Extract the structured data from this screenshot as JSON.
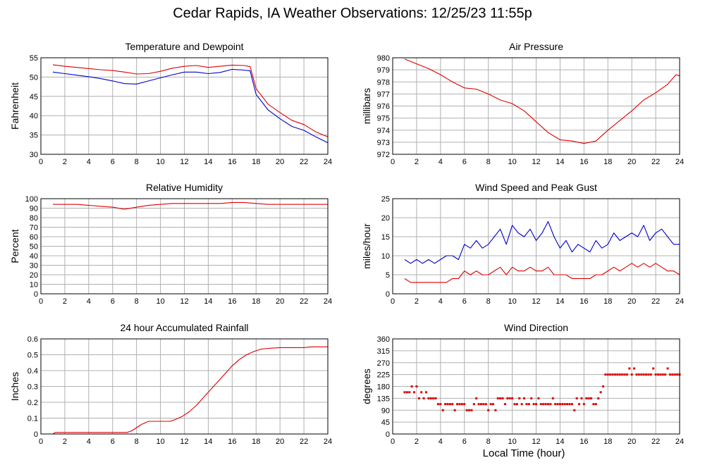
{
  "title": "Cedar Rapids, IA Weather Observations: 12/25/23 11:55p",
  "x_axis_title": "Local Time (hour)",
  "colors": {
    "primary": "#dd0000",
    "secondary": "#0000cc",
    "grid": "#b0b0b0"
  },
  "chart_data": [
    {
      "id": "temperature",
      "type": "line",
      "title": "Temperature and Dewpoint",
      "ylabel": "Fahrenheit",
      "xlim": [
        0,
        24
      ],
      "ylim": [
        30,
        55
      ],
      "xticks": [
        0,
        2,
        4,
        6,
        8,
        10,
        12,
        14,
        16,
        18,
        20,
        22,
        24
      ],
      "yticks": [
        30,
        35,
        40,
        45,
        50,
        55
      ],
      "grid": true,
      "series": [
        {
          "color": "#dd0000",
          "x": [
            1,
            2,
            3,
            4,
            5,
            6,
            7,
            8,
            9,
            10,
            11,
            12,
            13,
            14,
            15,
            16,
            17,
            17.5,
            18,
            19,
            20,
            21,
            22,
            23,
            24
          ],
          "y": [
            53.2,
            52.8,
            52.5,
            52.2,
            51.9,
            51.7,
            51.3,
            50.8,
            50.9,
            51.5,
            52.3,
            52.8,
            53.0,
            52.5,
            52.8,
            53.1,
            53.0,
            52.7,
            47.0,
            43.0,
            40.8,
            38.8,
            37.7,
            35.8,
            34.5
          ]
        },
        {
          "color": "#0000cc",
          "x": [
            1,
            2,
            3,
            4,
            5,
            6,
            7,
            8,
            9,
            10,
            11,
            12,
            13,
            14,
            15,
            16,
            17,
            17.5,
            18,
            19,
            20,
            21,
            22,
            23,
            24
          ],
          "y": [
            51.3,
            50.9,
            50.5,
            50.1,
            49.6,
            49.0,
            48.3,
            48.2,
            49.0,
            49.8,
            50.6,
            51.3,
            51.3,
            50.9,
            51.2,
            52.0,
            51.8,
            51.6,
            45.5,
            41.5,
            39.2,
            37.2,
            36.2,
            34.5,
            33.0
          ]
        }
      ]
    },
    {
      "id": "pressure",
      "type": "line",
      "title": "Air Pressure",
      "ylabel": "millibars",
      "xlim": [
        0,
        24
      ],
      "ylim": [
        972,
        980
      ],
      "xticks": [
        0,
        2,
        4,
        6,
        8,
        10,
        12,
        14,
        16,
        18,
        20,
        22,
        24
      ],
      "yticks": [
        972,
        973,
        974,
        975,
        976,
        977,
        978,
        979,
        980
      ],
      "grid": true,
      "series": [
        {
          "color": "#dd0000",
          "x": [
            1,
            2,
            3,
            4,
            5,
            6,
            7,
            8,
            9,
            10,
            11,
            12,
            13,
            14,
            15,
            16,
            17,
            18,
            19,
            20,
            21,
            22,
            23,
            23.7,
            24
          ],
          "y": [
            979.9,
            979.5,
            979.1,
            978.6,
            978.0,
            977.5,
            977.4,
            977.0,
            976.5,
            976.2,
            975.6,
            974.7,
            973.8,
            973.2,
            973.1,
            972.9,
            973.1,
            974.0,
            974.8,
            975.6,
            976.5,
            977.1,
            977.8,
            978.6,
            978.5
          ]
        }
      ]
    },
    {
      "id": "humidity",
      "type": "line",
      "title": "Relative Humidity",
      "ylabel": "Percent",
      "xlim": [
        0,
        24
      ],
      "ylim": [
        0,
        100
      ],
      "xticks": [
        0,
        2,
        4,
        6,
        8,
        10,
        12,
        14,
        16,
        18,
        20,
        22,
        24
      ],
      "yticks": [
        0,
        10,
        20,
        30,
        40,
        50,
        60,
        70,
        80,
        90,
        100
      ],
      "grid": true,
      "series": [
        {
          "color": "#dd0000",
          "x": [
            1,
            2,
            3,
            4,
            5,
            6,
            7,
            8,
            9,
            10,
            11,
            12,
            13,
            14,
            15,
            16,
            17,
            18,
            19,
            20,
            21,
            22,
            23,
            24
          ],
          "y": [
            94,
            94,
            94,
            93,
            92,
            91,
            89,
            91,
            93,
            94,
            95,
            95,
            95,
            95,
            95,
            96,
            96,
            95,
            94,
            94,
            94,
            94,
            94,
            94
          ]
        }
      ]
    },
    {
      "id": "wind-speed",
      "type": "line",
      "title": "Wind Speed and Peak Gust",
      "ylabel": "miles/hour",
      "xlim": [
        0,
        24
      ],
      "ylim": [
        0,
        25
      ],
      "xticks": [
        0,
        2,
        4,
        6,
        8,
        10,
        12,
        14,
        16,
        18,
        20,
        22,
        24
      ],
      "yticks": [
        0,
        5,
        10,
        15,
        20,
        25
      ],
      "grid": true,
      "series": [
        {
          "color": "#0000cc",
          "x": [
            1,
            1.5,
            2,
            2.5,
            3,
            3.5,
            4,
            4.5,
            5,
            5.5,
            6,
            6.5,
            7,
            7.5,
            8,
            8.5,
            9,
            9.5,
            10,
            10.5,
            11,
            11.5,
            12,
            12.5,
            13,
            13.5,
            14,
            14.5,
            15,
            15.5,
            16,
            16.5,
            17,
            17.5,
            18,
            18.5,
            19,
            19.5,
            20,
            20.5,
            21,
            21.5,
            22,
            22.5,
            23,
            23.5,
            24
          ],
          "y": [
            9,
            8,
            9,
            8,
            9,
            8,
            9,
            10,
            10,
            9,
            13,
            12,
            14,
            12,
            13,
            15,
            17,
            13,
            18,
            16,
            15,
            17,
            14,
            16,
            19,
            15,
            12,
            14,
            11,
            13,
            12,
            11,
            14,
            12,
            13,
            16,
            14,
            15,
            16,
            15,
            18,
            14,
            16,
            17,
            15,
            13,
            13
          ]
        },
        {
          "color": "#dd0000",
          "x": [
            1,
            1.5,
            2,
            2.5,
            3,
            3.5,
            4,
            4.5,
            5,
            5.5,
            6,
            6.5,
            7,
            7.5,
            8,
            8.5,
            9,
            9.5,
            10,
            10.5,
            11,
            11.5,
            12,
            12.5,
            13,
            13.5,
            14,
            14.5,
            15,
            15.5,
            16,
            16.5,
            17,
            17.5,
            18,
            18.5,
            19,
            19.5,
            20,
            20.5,
            21,
            21.5,
            22,
            22.5,
            23,
            23.5,
            24
          ],
          "y": [
            4,
            3,
            3,
            3,
            3,
            3,
            3,
            3,
            4,
            4,
            6,
            5,
            6,
            5,
            5,
            6,
            7,
            5,
            7,
            6,
            6,
            7,
            6,
            6,
            7,
            5,
            5,
            5,
            4,
            4,
            4,
            4,
            5,
            5,
            6,
            7,
            6,
            7,
            8,
            7,
            8,
            7,
            8,
            7,
            6,
            6,
            5
          ]
        }
      ]
    },
    {
      "id": "rainfall",
      "type": "line",
      "title": "24 hour Accumulated Rainfall",
      "ylabel": "Inches",
      "xlim": [
        0,
        24
      ],
      "ylim": [
        0,
        0.6
      ],
      "xticks": [
        0,
        2,
        4,
        6,
        8,
        10,
        12,
        14,
        16,
        18,
        20,
        22,
        24
      ],
      "yticks": [
        0,
        0.1,
        0.2,
        0.3,
        0.4,
        0.5,
        0.6
      ],
      "grid": true,
      "series": [
        {
          "color": "#dd0000",
          "x": [
            1,
            1.2,
            6.2,
            7.2,
            7.6,
            8.0,
            8.4,
            9.0,
            10.8,
            11.2,
            11.8,
            12.4,
            13.0,
            13.6,
            14.2,
            14.8,
            15.4,
            16.0,
            16.6,
            17.2,
            17.8,
            18.4,
            19.0,
            20.0,
            21.0,
            22.0,
            22.6,
            24.0
          ],
          "y": [
            0.0,
            0.01,
            0.01,
            0.01,
            0.02,
            0.04,
            0.06,
            0.08,
            0.08,
            0.09,
            0.11,
            0.14,
            0.18,
            0.23,
            0.28,
            0.33,
            0.38,
            0.43,
            0.47,
            0.5,
            0.52,
            0.535,
            0.54,
            0.545,
            0.545,
            0.545,
            0.55,
            0.55
          ]
        }
      ]
    },
    {
      "id": "wind-direction",
      "type": "scatter",
      "title": "Wind Direction",
      "ylabel": "degrees",
      "xlim": [
        0,
        24
      ],
      "ylim": [
        0,
        360
      ],
      "xticks": [
        0,
        2,
        4,
        6,
        8,
        10,
        12,
        14,
        16,
        18,
        20,
        22,
        24
      ],
      "yticks": [
        0,
        45,
        90,
        135,
        180,
        225,
        270,
        315,
        360
      ],
      "grid": true,
      "series": [
        {
          "color": "#dd0000",
          "x": [
            1.0,
            1.2,
            1.4,
            1.6,
            1.8,
            2.0,
            2.2,
            2.4,
            2.6,
            2.8,
            3.0,
            3.2,
            3.4,
            3.6,
            3.8,
            4.0,
            4.2,
            4.4,
            4.6,
            4.8,
            5.0,
            5.2,
            5.4,
            5.6,
            5.8,
            6.0,
            6.2,
            6.4,
            6.6,
            6.8,
            7.0,
            7.2,
            7.4,
            7.6,
            7.8,
            8.0,
            8.2,
            8.4,
            8.6,
            8.8,
            9.0,
            9.2,
            9.4,
            9.6,
            9.8,
            10.0,
            10.2,
            10.4,
            10.6,
            10.8,
            11.0,
            11.2,
            11.4,
            11.6,
            11.8,
            12.0,
            12.2,
            12.4,
            12.6,
            12.8,
            13.0,
            13.2,
            13.4,
            13.6,
            13.8,
            14.0,
            14.2,
            14.4,
            14.6,
            14.8,
            15.0,
            15.2,
            15.4,
            15.6,
            15.8,
            16.0,
            16.2,
            16.4,
            16.6,
            16.8,
            17.0,
            17.2,
            17.4,
            17.6,
            17.8,
            18.0,
            18.2,
            18.4,
            18.6,
            18.8,
            19.0,
            19.2,
            19.4,
            19.6,
            19.8,
            20.0,
            20.2,
            20.4,
            20.6,
            20.8,
            21.0,
            21.2,
            21.4,
            21.6,
            21.8,
            22.0,
            22.2,
            22.4,
            22.6,
            22.8,
            23.0,
            23.2,
            23.4,
            23.6,
            23.8,
            24.0
          ],
          "y": [
            158,
            158,
            158,
            180,
            158,
            180,
            135,
            158,
            135,
            158,
            135,
            135,
            135,
            135,
            113,
            113,
            90,
            113,
            113,
            113,
            113,
            90,
            113,
            113,
            113,
            113,
            90,
            90,
            90,
            113,
            135,
            113,
            113,
            113,
            113,
            90,
            113,
            113,
            90,
            135,
            135,
            135,
            113,
            135,
            135,
            135,
            113,
            113,
            135,
            113,
            135,
            113,
            113,
            135,
            113,
            113,
            135,
            113,
            113,
            113,
            113,
            113,
            135,
            113,
            113,
            113,
            113,
            113,
            113,
            113,
            113,
            90,
            135,
            113,
            135,
            113,
            135,
            135,
            135,
            113,
            113,
            135,
            158,
            180,
            225,
            225,
            225,
            225,
            225,
            225,
            225,
            225,
            225,
            225,
            248,
            225,
            248,
            225,
            225,
            225,
            225,
            225,
            225,
            225,
            248,
            225,
            225,
            225,
            225,
            225,
            248,
            225,
            225,
            225,
            225,
            225
          ]
        }
      ]
    }
  ]
}
